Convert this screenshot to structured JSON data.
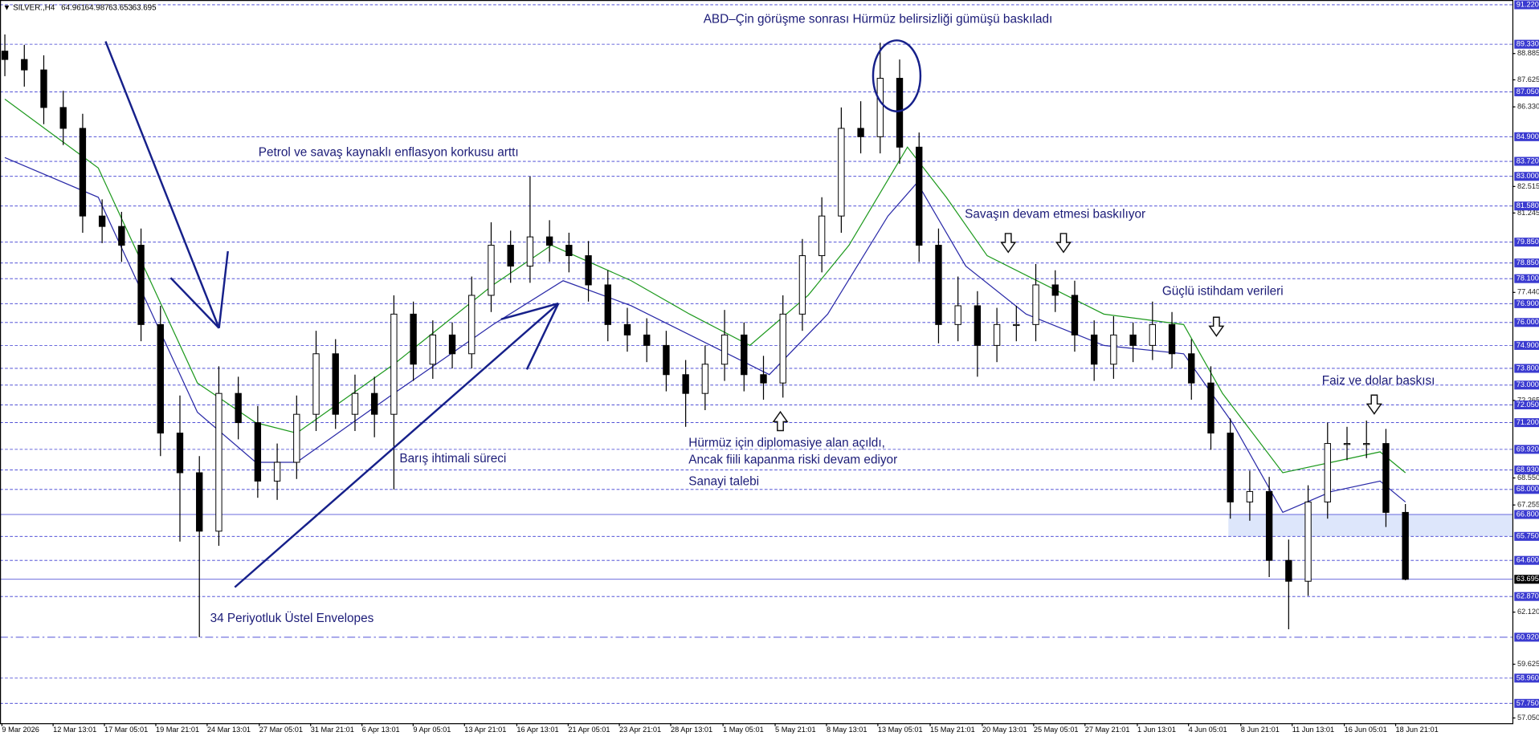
{
  "header": {
    "symbol": "▼ SILVER.,H4",
    "open": 64.961,
    "high": 64.987,
    "low": 63.653,
    "close": 63.695
  },
  "chart_data": {
    "type": "candlestick",
    "xlim": [
      -0.25,
      77.5
    ],
    "ylim": [
      56.8,
      91.45
    ],
    "xticks": [
      {
        "value": -0.15,
        "label": "9 Mar 2026"
      },
      {
        "value": 2.48,
        "label": "12 Mar 13:01"
      },
      {
        "value": 5.12,
        "label": "17 Mar 05:01"
      },
      {
        "value": 7.76,
        "label": "19 Mar 21:01"
      },
      {
        "value": 10.4,
        "label": "24 Mar 13:01"
      },
      {
        "value": 13.08,
        "label": "27 Mar 05:01"
      },
      {
        "value": 15.72,
        "label": "31 Mar 21:01"
      },
      {
        "value": 18.36,
        "label": "6 Apr 13:01"
      },
      {
        "value": 20.99,
        "label": "9 Apr 05:01"
      },
      {
        "value": 23.63,
        "label": "13 Apr 21:01"
      },
      {
        "value": 26.32,
        "label": "16 Apr 13:01"
      },
      {
        "value": 28.96,
        "label": "21 Apr 05:01"
      },
      {
        "value": 31.59,
        "label": "23 Apr 21:01"
      },
      {
        "value": 34.23,
        "label": "28 Apr 13:01"
      },
      {
        "value": 36.92,
        "label": "1 May 05:01"
      },
      {
        "value": 39.6,
        "label": "5 May 21:01"
      },
      {
        "value": 42.24,
        "label": "8 May 13:01"
      },
      {
        "value": 44.88,
        "label": "13 May 05:01"
      },
      {
        "value": 47.57,
        "label": "15 May 21:01"
      },
      {
        "value": 50.25,
        "label": "20 May 13:01"
      },
      {
        "value": 52.89,
        "label": "25 May 05:01"
      },
      {
        "value": 55.53,
        "label": "27 May 21:01"
      },
      {
        "value": 58.22,
        "label": "1 Jun 13:01"
      },
      {
        "value": 60.85,
        "label": "4 Jun 05:01"
      },
      {
        "value": 63.54,
        "label": "8 Jun 21:01"
      },
      {
        "value": 66.18,
        "label": "11 Jun 13:01"
      },
      {
        "value": 68.86,
        "label": "16 Jun 05:01"
      },
      {
        "value": 71.5,
        "label": "18 Jun 21:01"
      }
    ],
    "yticks": [
      {
        "value": 88.885,
        "label": "88.885"
      },
      {
        "value": 87.625,
        "label": "87.625"
      },
      {
        "value": 86.33,
        "label": "86.330"
      },
      {
        "value": 82.515,
        "label": "82.515"
      },
      {
        "value": 81.245,
        "label": "81.245"
      },
      {
        "value": 77.44,
        "label": "77.440"
      },
      {
        "value": 72.265,
        "label": "72.265"
      },
      {
        "value": 68.55,
        "label": "68.550"
      },
      {
        "value": 67.255,
        "label": "67.255"
      },
      {
        "value": 62.12,
        "label": "62.120"
      },
      {
        "value": 59.625,
        "label": "59.625"
      },
      {
        "value": 57.05,
        "label": "57.050"
      }
    ],
    "levels": [
      {
        "value": 91.22,
        "label": "91.220"
      },
      {
        "value": 89.33,
        "label": "89.330"
      },
      {
        "value": 87.05,
        "label": "87.050"
      },
      {
        "value": 84.9,
        "label": "84.900"
      },
      {
        "value": 83.72,
        "label": "83.720"
      },
      {
        "value": 83.0,
        "label": "83.000"
      },
      {
        "value": 81.58,
        "label": "81.580"
      },
      {
        "value": 79.85,
        "label": "79.850"
      },
      {
        "value": 78.85,
        "label": "78.850"
      },
      {
        "value": 78.1,
        "label": "78.100"
      },
      {
        "value": 76.9,
        "label": "76.900"
      },
      {
        "value": 76.0,
        "label": "76.000"
      },
      {
        "value": 74.9,
        "label": "74.900"
      },
      {
        "value": 73.8,
        "label": "73.800"
      },
      {
        "value": 73.0,
        "label": "73.000"
      },
      {
        "value": 72.05,
        "label": "72.050"
      },
      {
        "value": 71.2,
        "label": "71.200"
      },
      {
        "value": 69.92,
        "label": "69.920"
      },
      {
        "value": 68.93,
        "label": "68.930"
      },
      {
        "value": 68.0,
        "label": "68.000"
      },
      {
        "value": 66.8,
        "label": "66.800",
        "style": "solid"
      },
      {
        "value": 65.75,
        "label": "65.750"
      },
      {
        "value": 64.6,
        "label": "64.600"
      },
      {
        "value": 62.87,
        "label": "62.870"
      },
      {
        "value": 60.92,
        "label": "60.920",
        "style": "dashdot"
      },
      {
        "value": 58.96,
        "label": "58.960"
      },
      {
        "value": 57.75,
        "label": "57.750"
      }
    ],
    "level_color": "#3a3ad0",
    "current": 63.695,
    "zone": {
      "ylim": [
        65.75,
        66.8
      ],
      "x_start": 62.9,
      "color": "#dde6fb"
    },
    "candle_up": "#ffffff",
    "candle_down": "#000000",
    "open": [
      89.0,
      88.6,
      88.1,
      86.3,
      85.3,
      81.1,
      80.6,
      79.7,
      75.9,
      70.7,
      68.8,
      66.0,
      72.6,
      71.2,
      68.4,
      69.3,
      71.6,
      74.5,
      71.6,
      72.6,
      71.6,
      76.4,
      74.0,
      75.4,
      74.5,
      77.3,
      79.7,
      78.7,
      80.1,
      79.7,
      79.2,
      77.8,
      75.9,
      75.4,
      74.9,
      73.5,
      72.6,
      74.0,
      75.4,
      73.5,
      73.1,
      76.4,
      79.2,
      81.1,
      85.3,
      84.9,
      87.7,
      84.4,
      79.7,
      75.9,
      76.8,
      74.9,
      75.9,
      75.9,
      77.8,
      77.3,
      75.4,
      74.0,
      75.4,
      74.9,
      75.9,
      74.5,
      73.1,
      70.7,
      67.4,
      67.9,
      64.6,
      63.6,
      67.4,
      70.2,
      70.2,
      70.2,
      66.9
    ],
    "high": [
      89.8,
      89.3,
      88.8,
      87.1,
      86.0,
      81.9,
      81.3,
      80.5,
      76.8,
      72.5,
      69.6,
      73.9,
      73.4,
      72.0,
      70.2,
      72.5,
      75.6,
      75.2,
      73.5,
      73.4,
      77.3,
      77.0,
      76.1,
      76.0,
      78.2,
      80.8,
      80.4,
      83.0,
      80.9,
      80.3,
      79.9,
      78.5,
      76.7,
      76.2,
      75.6,
      74.2,
      74.9,
      76.6,
      76.0,
      74.4,
      77.3,
      80.0,
      82.0,
      86.3,
      86.6,
      89.4,
      88.6,
      85.1,
      80.5,
      78.2,
      77.5,
      76.7,
      76.8,
      78.8,
      78.5,
      78.0,
      76.1,
      76.3,
      76.0,
      77.0,
      76.5,
      75.2,
      73.9,
      71.4,
      68.9,
      68.6,
      65.6,
      68.2,
      71.2,
      71.0,
      71.3,
      70.9,
      67.3
    ],
    "low": [
      87.8,
      87.3,
      85.5,
      84.5,
      80.3,
      79.8,
      78.9,
      75.1,
      69.6,
      65.5,
      60.92,
      65.3,
      70.4,
      67.6,
      67.5,
      68.5,
      70.8,
      70.9,
      70.8,
      70.5,
      68.0,
      73.2,
      73.3,
      73.8,
      73.8,
      76.5,
      77.9,
      77.9,
      78.9,
      78.4,
      77.0,
      75.1,
      74.6,
      74.1,
      72.7,
      71.0,
      71.8,
      73.2,
      72.7,
      72.3,
      72.4,
      75.6,
      78.4,
      80.3,
      84.1,
      84.1,
      83.6,
      78.9,
      75.0,
      75.1,
      73.4,
      74.1,
      75.1,
      75.1,
      76.5,
      74.6,
      73.2,
      73.3,
      74.1,
      74.2,
      73.8,
      72.3,
      69.9,
      66.6,
      66.5,
      63.8,
      61.3,
      62.9,
      66.6,
      69.4,
      69.5,
      66.2,
      63.65
    ],
    "close": [
      88.6,
      88.1,
      86.3,
      85.3,
      81.1,
      80.6,
      79.7,
      75.9,
      70.7,
      68.8,
      66.0,
      72.6,
      71.2,
      68.4,
      69.3,
      71.6,
      74.5,
      71.6,
      72.6,
      71.6,
      76.4,
      74.0,
      75.4,
      74.5,
      77.3,
      79.7,
      78.7,
      80.1,
      79.7,
      79.2,
      77.8,
      75.9,
      75.4,
      74.9,
      73.5,
      72.6,
      74.0,
      75.4,
      73.5,
      73.1,
      76.4,
      79.2,
      81.1,
      85.3,
      84.9,
      87.7,
      84.4,
      79.7,
      75.9,
      76.8,
      74.9,
      75.9,
      75.9,
      77.8,
      77.3,
      75.4,
      74.0,
      75.4,
      74.9,
      75.9,
      74.5,
      73.1,
      70.7,
      67.4,
      67.9,
      64.6,
      63.6,
      67.4,
      70.2,
      70.2,
      70.2,
      66.9,
      63.695
    ],
    "series": [
      {
        "color": "#1f9a1f",
        "x": [
          0,
          4.8,
          9.9,
          12.9,
          15,
          20,
          25.1,
          28.1,
          32.2,
          35.2,
          38.3,
          41.3,
          43.4,
          46.4,
          48.4,
          50.5,
          53.5,
          56.5,
          60.6,
          62.6,
          65.7,
          68.2,
          70.7,
          72
        ],
        "values": [
          86.7,
          83.4,
          73.1,
          71.2,
          70.7,
          74.0,
          77.8,
          79.7,
          78.0,
          76.4,
          74.9,
          77.3,
          79.7,
          84.4,
          82.0,
          79.2,
          77.8,
          76.4,
          75.9,
          72.6,
          68.8,
          69.3,
          69.8,
          68.8
        ]
      },
      {
        "color": "#2a2aa8",
        "x": [
          0,
          4.8,
          9.9,
          12.9,
          15,
          20,
          25.1,
          28.7,
          32.2,
          36.3,
          39.3,
          42.3,
          45.4,
          46.9,
          49.4,
          52.5,
          56.5,
          60.6,
          63.1,
          65.7,
          68.2,
          70.7,
          72
        ],
        "values": [
          83.9,
          82.0,
          71.7,
          69.3,
          69.3,
          72.6,
          75.9,
          78.0,
          76.8,
          74.9,
          73.5,
          76.4,
          81.1,
          82.7,
          78.7,
          76.4,
          74.9,
          74.5,
          71.2,
          66.9,
          67.9,
          68.4,
          67.4
        ]
      }
    ]
  },
  "annotations": [
    "ABD–Çin görüşme sonrası Hürmüz belirsizliği gümüşü baskıladı",
    "Petrol ve savaş kaynaklı enflasyon korkusu arttı",
    "Savaşın devam etmesi baskılıyor",
    "Güçlü istihdam verileri",
    "Faiz ve dolar baskısı",
    "Hürmüz için diplomasiye alan açıldı,",
    "Ancak fiili kapanma riski devam ediyor",
    "Sanayi talebi",
    "Barış ihtimali süreci",
    "34 Periyotluk Üstel Envelopes"
  ]
}
